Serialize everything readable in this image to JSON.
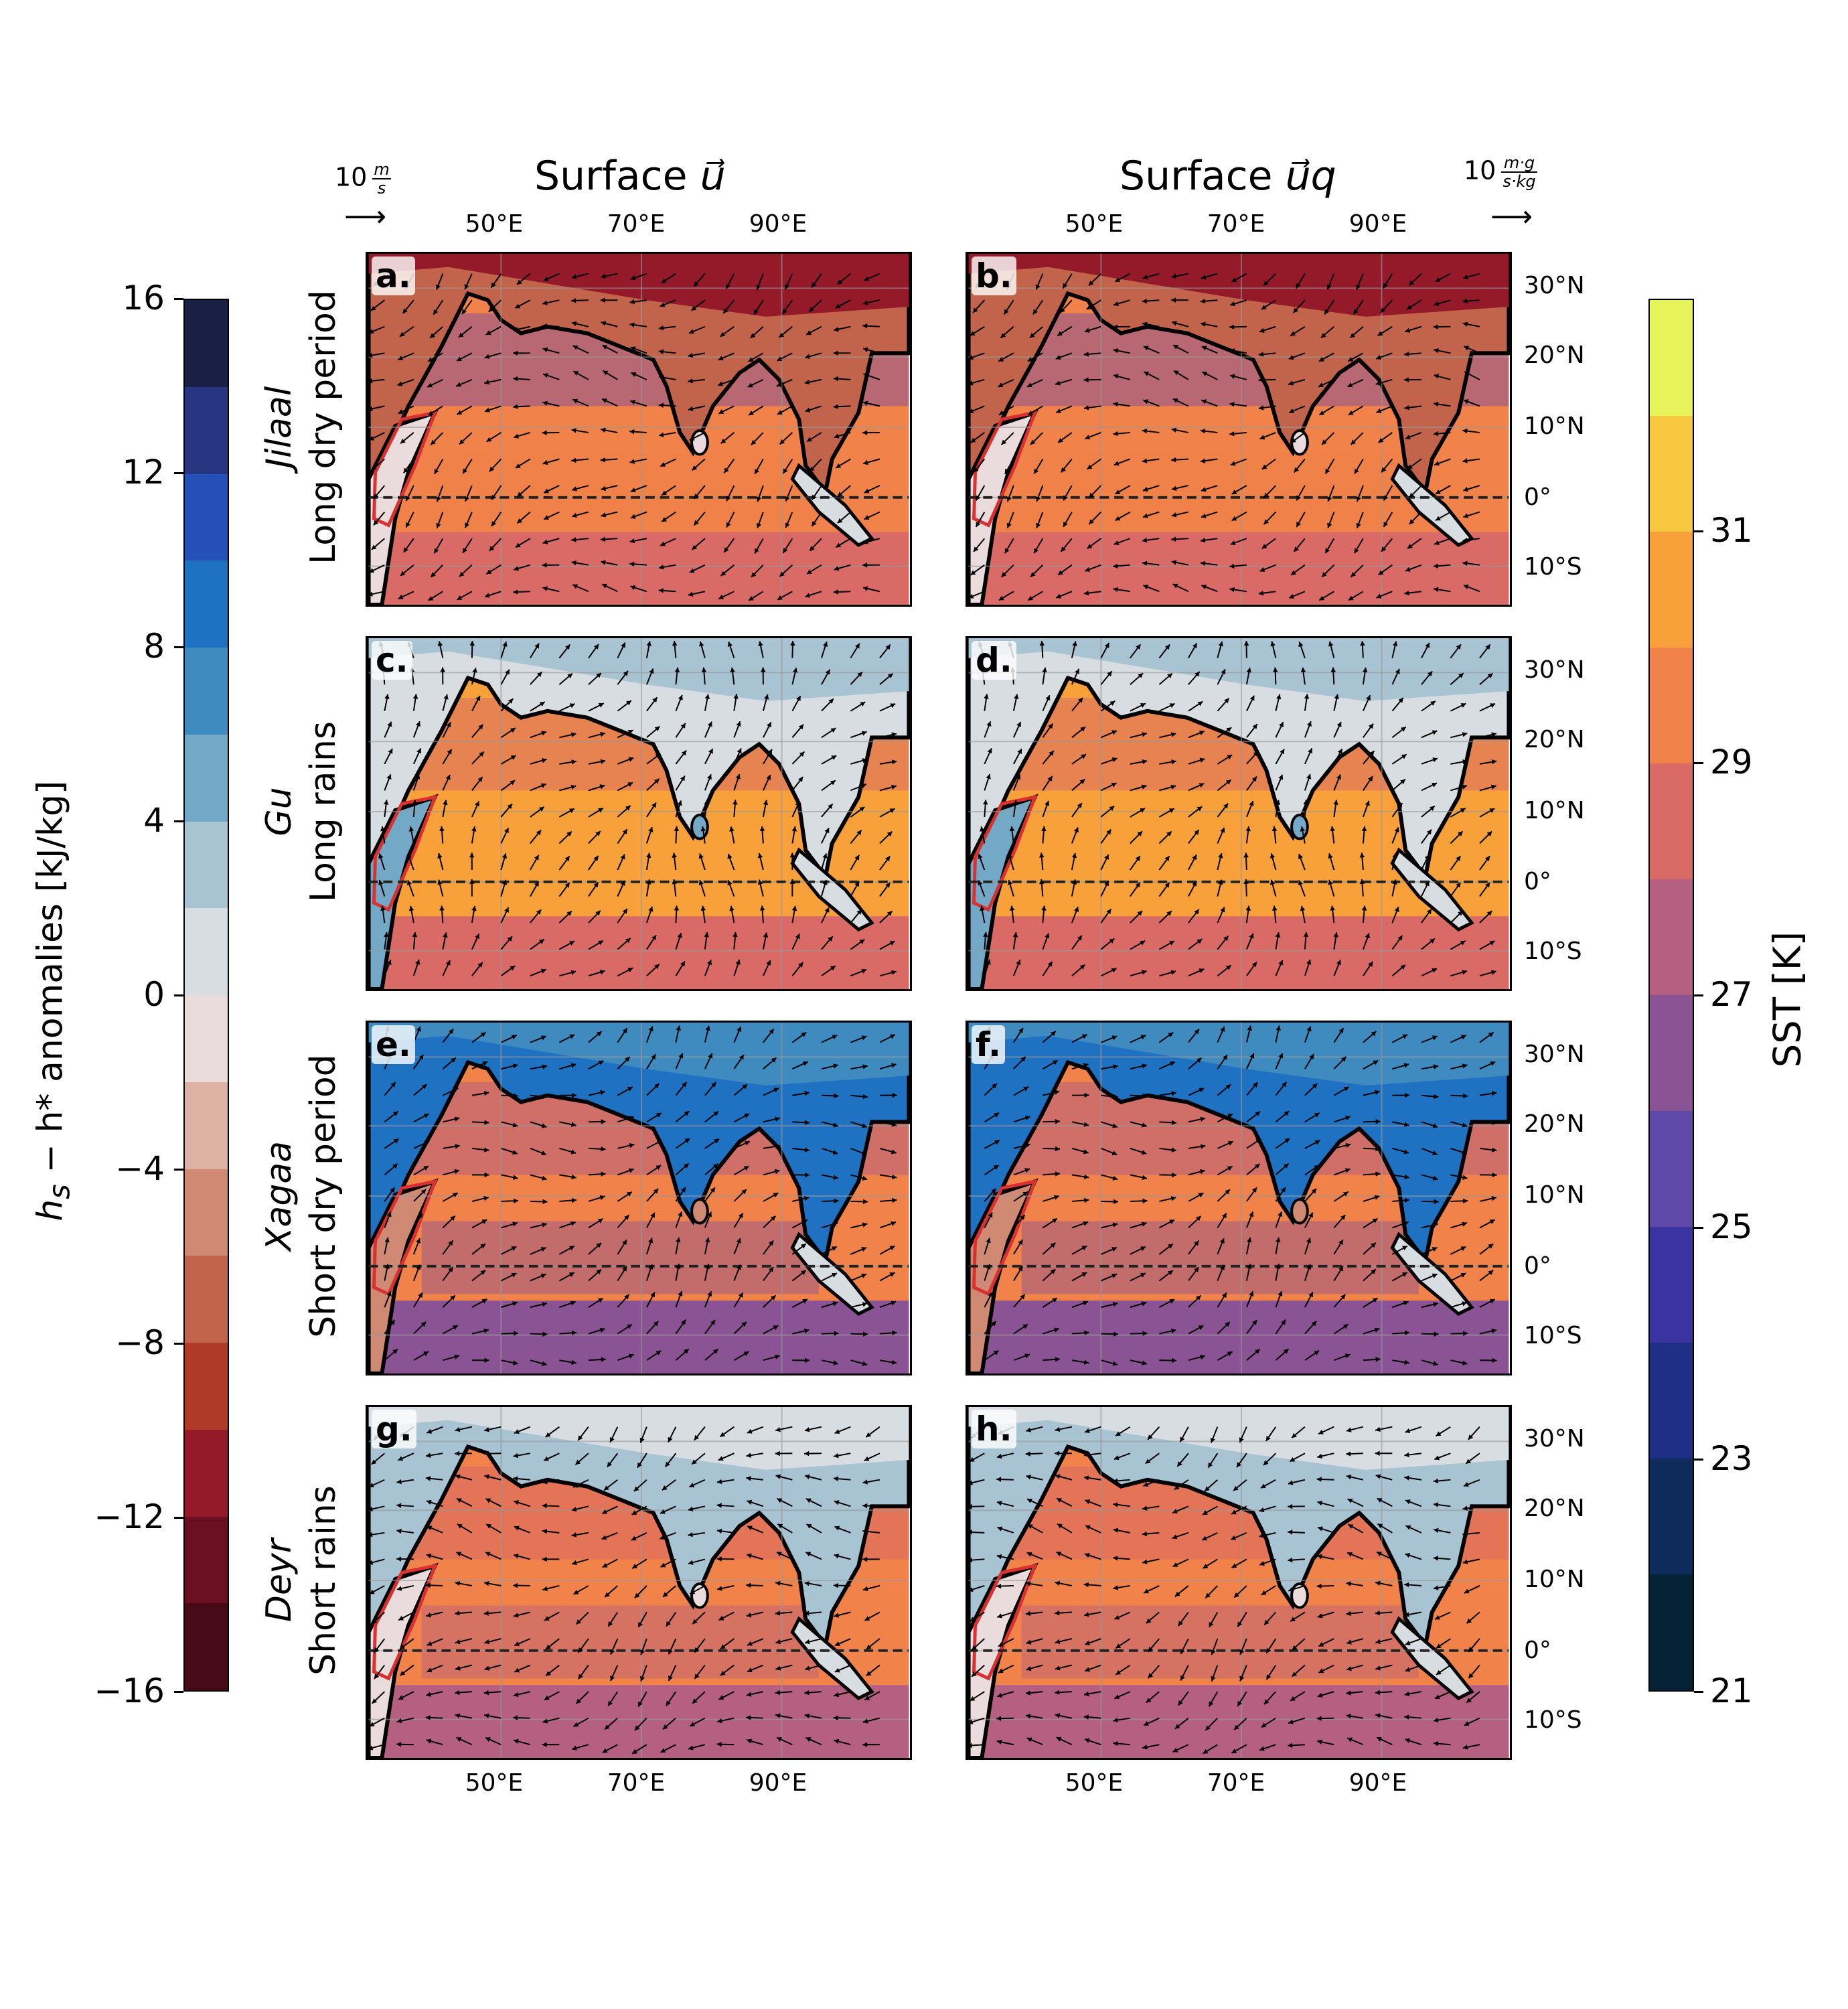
{
  "column_titles": {
    "left": {
      "prefix": "Surface ",
      "symbol": "u⃗"
    },
    "right": {
      "prefix": "Surface ",
      "symbol": "u⃗q"
    }
  },
  "scale_arrows": {
    "left": {
      "magnitude": "10",
      "num": "m",
      "den": "s",
      "glyph": "⟶"
    },
    "right": {
      "magnitude": "10",
      "num": "m·g",
      "den": "s·kg",
      "glyph": "⟶"
    }
  },
  "lon_ticks": [
    "50°E",
    "70°E",
    "90°E"
  ],
  "lat_ticks": [
    "30°N",
    "20°N",
    "10°N",
    "0°",
    "10°S"
  ],
  "rows": [
    {
      "season": "Jilaal",
      "description": "Long dry period"
    },
    {
      "season": "Gu",
      "description": "Long rains"
    },
    {
      "season": "Xagaa",
      "description": "Short dry period"
    },
    {
      "season": "Deyr",
      "description": "Short rains"
    }
  ],
  "panels": [
    {
      "label": "a.",
      "regime": "jilaal"
    },
    {
      "label": "b.",
      "regime": "jilaal"
    },
    {
      "label": "c.",
      "regime": "gu"
    },
    {
      "label": "d.",
      "regime": "gu"
    },
    {
      "label": "e.",
      "regime": "xagaa"
    },
    {
      "label": "f.",
      "regime": "xagaa"
    },
    {
      "label": "g.",
      "regime": "deyr"
    },
    {
      "label": "h.",
      "regime": "deyr"
    }
  ],
  "left_colorbar": {
    "label_var": "h",
    "label_sub": "s",
    "label_rest": " − h* anomalies [kJ/kg]",
    "ticks": [
      "16",
      "12",
      "8",
      "4",
      "0",
      "−4",
      "−8",
      "−12",
      "−16"
    ],
    "levels_top_to_bottom": [
      "#1a1f45",
      "#283580",
      "#2450b8",
      "#1f72c2",
      "#3f8bc0",
      "#74a8c7",
      "#a8c3d2",
      "#d8dde1",
      "#eadcdc",
      "#ddb2a5",
      "#d08a74",
      "#c2644b",
      "#b03a28",
      "#941a29",
      "#6b0f22",
      "#460b17"
    ]
  },
  "right_colorbar": {
    "label": "SST [K]",
    "ticks": [
      "31",
      "29",
      "27",
      "25",
      "23",
      "21"
    ],
    "levels_top_to_bottom": [
      "#e7f35a",
      "#f6c73f",
      "#f8a13b",
      "#f0824a",
      "#d96a65",
      "#b56080",
      "#8a5494",
      "#5f48a8",
      "#3b34a0",
      "#1f2f86",
      "#0f2b5c",
      "#052236"
    ]
  }
}
